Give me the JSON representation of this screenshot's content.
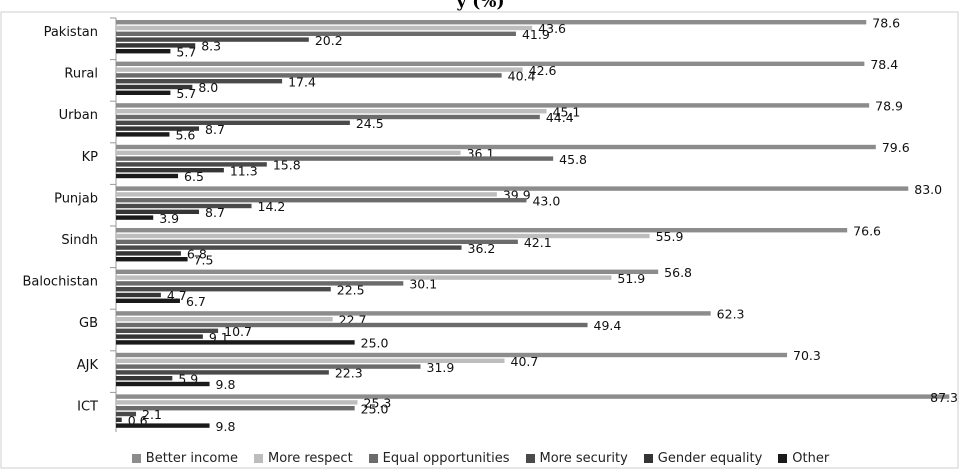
{
  "title_fragment": "y (%)",
  "chart_data": {
    "type": "bar",
    "orientation": "horizontal",
    "title": "",
    "xlabel": "",
    "ylabel": "",
    "xlim": [
      0,
      88
    ],
    "grid": false,
    "legend_position": "bottom",
    "categories": [
      "Pakistan",
      "Rural",
      "Urban",
      "KP",
      "Punjab",
      "Sindh",
      "Balochistan",
      "GB",
      "AJK",
      "ICT"
    ],
    "series": [
      {
        "name": "Better income",
        "color": "#8c8c8c",
        "values": [
          78.6,
          78.4,
          78.9,
          79.6,
          83.0,
          76.6,
          56.8,
          62.3,
          70.3,
          87.3
        ],
        "labels": [
          "78.6",
          "78.4",
          "78.9",
          "79.6",
          "83.0",
          "76.6",
          "56.8",
          "62.3",
          "70.3",
          "87.3"
        ]
      },
      {
        "name": "More respect",
        "color": "#bdbdbd",
        "values": [
          43.6,
          42.6,
          45.1,
          36.1,
          39.9,
          55.9,
          51.9,
          22.7,
          40.7,
          25.3
        ],
        "labels": [
          "43.6",
          "42.6",
          "45.1",
          "36.1",
          "39.9",
          "55.9",
          "51.9",
          "22.7",
          "40.7",
          "25.3"
        ]
      },
      {
        "name": "Equal opportunities",
        "color": "#6b6b6b",
        "values": [
          41.9,
          40.4,
          44.4,
          45.8,
          43.0,
          42.1,
          30.1,
          49.4,
          31.9,
          25.0
        ],
        "labels": [
          "41.9",
          "40.4",
          "44.4",
          "45.8",
          "43.0",
          "42.1",
          "30.1",
          "49.4",
          "31.9",
          "25.0"
        ]
      },
      {
        "name": "More security",
        "color": "#4a4a4a",
        "values": [
          20.2,
          17.4,
          24.5,
          15.8,
          14.2,
          36.2,
          22.5,
          10.7,
          22.3,
          2.1
        ],
        "labels": [
          "20.2",
          "17.4",
          "24.5",
          "15.8",
          "14.2",
          "36.2",
          "22.5",
          "10.7",
          "22.3",
          "2.1"
        ]
      },
      {
        "name": "Gender equality",
        "color": "#353535",
        "values": [
          8.3,
          8.0,
          8.7,
          11.3,
          8.7,
          6.8,
          4.7,
          9.1,
          5.9,
          0.6
        ],
        "labels": [
          "8.3",
          "8.0",
          "8.7",
          "11.3",
          "8.7",
          "6.8",
          "4.7",
          "9.1",
          "5.9",
          "0.6"
        ]
      },
      {
        "name": "Other",
        "color": "#1a1a1a",
        "values": [
          5.7,
          5.7,
          5.6,
          6.5,
          3.9,
          7.5,
          6.7,
          25.0,
          9.8,
          9.8
        ],
        "labels": [
          "5.7",
          "5.7",
          "5.6",
          "6.5",
          "3.9",
          "7.5",
          "6.7",
          "25.0",
          "9.8",
          "9.8"
        ]
      }
    ]
  }
}
